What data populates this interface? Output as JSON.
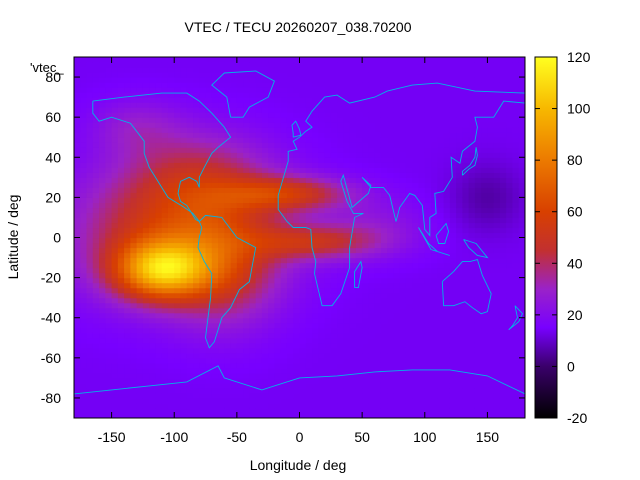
{
  "chart_data": {
    "type": "heatmap",
    "title": "VTEC / TECU 20260207_038.70200",
    "xlabel": "Longitude / deg",
    "ylabel": "Latitude / deg",
    "xlim": [
      -180,
      180
    ],
    "ylim": [
      -90,
      90
    ],
    "x_ticks": [
      -150,
      -100,
      -50,
      0,
      50,
      100,
      150
    ],
    "y_ticks": [
      -80,
      -60,
      -40,
      -20,
      0,
      20,
      40,
      60,
      80
    ],
    "colorbar": {
      "range": [
        -20,
        120
      ],
      "ticks": [
        -20,
        0,
        20,
        40,
        60,
        80,
        100,
        120
      ],
      "stops": [
        {
          "v": -20,
          "color": "#000000"
        },
        {
          "v": 0,
          "color": "#3a006a"
        },
        {
          "v": 15,
          "color": "#7800ff"
        },
        {
          "v": 30,
          "color": "#9a22c8"
        },
        {
          "v": 45,
          "color": "#c23030"
        },
        {
          "v": 60,
          "color": "#d84000"
        },
        {
          "v": 80,
          "color": "#ec7a00"
        },
        {
          "v": 100,
          "color": "#f7b800"
        },
        {
          "v": 120,
          "color": "#ffff20"
        }
      ]
    },
    "legend_entry": "'vtec_",
    "background_tec": 14,
    "features": [
      {
        "name": "equatorial-anomaly-core",
        "lon": -110,
        "lat": -16,
        "sigma_lon": 26,
        "sigma_lat": 10,
        "amp": 70
      },
      {
        "name": "pacific-band",
        "lon": -100,
        "lat": 2,
        "sigma_lon": 55,
        "sigma_lat": 22,
        "amp": 38
      },
      {
        "name": "south-america-band",
        "lon": -60,
        "lat": -15,
        "sigma_lon": 30,
        "sigma_lat": 20,
        "amp": 25
      },
      {
        "name": "north-america-band",
        "lon": -80,
        "lat": 30,
        "sigma_lon": 40,
        "sigma_lat": 16,
        "amp": 22
      },
      {
        "name": "atlantic-north-crest",
        "lon": -10,
        "lat": 22,
        "sigma_lon": 35,
        "sigma_lat": 6,
        "amp": 35
      },
      {
        "name": "atlantic-south-crest",
        "lon": 10,
        "lat": -2,
        "sigma_lon": 35,
        "sigma_lat": 6,
        "amp": 30
      },
      {
        "name": "indian-ocean-tail",
        "lon": 60,
        "lat": 5,
        "sigma_lon": 30,
        "sigma_lat": 10,
        "amp": 10
      },
      {
        "name": "north-pacific-arc",
        "lon": -130,
        "lat": 55,
        "sigma_lon": 25,
        "sigma_lat": 10,
        "amp": 12
      },
      {
        "name": "asian-depletion",
        "lon": 150,
        "lat": 20,
        "sigma_lon": 20,
        "sigma_lat": 12,
        "amp": -8
      }
    ],
    "coastlines": [
      {
        "name": "north-america",
        "points": [
          [
            -165,
            68
          ],
          [
            -140,
            70
          ],
          [
            -110,
            72
          ],
          [
            -90,
            72
          ],
          [
            -80,
            68
          ],
          [
            -70,
            62
          ],
          [
            -60,
            55
          ],
          [
            -55,
            50
          ],
          [
            -65,
            45
          ],
          [
            -70,
            42
          ],
          [
            -76,
            35
          ],
          [
            -80,
            30
          ],
          [
            -80,
            25
          ],
          [
            -82,
            28
          ],
          [
            -88,
            30
          ],
          [
            -95,
            28
          ],
          [
            -97,
            22
          ],
          [
            -95,
            18
          ],
          [
            -90,
            16
          ],
          [
            -86,
            12
          ],
          [
            -83,
            9
          ],
          [
            -80,
            8
          ],
          [
            -85,
            12
          ],
          [
            -92,
            15
          ],
          [
            -105,
            20
          ],
          [
            -110,
            25
          ],
          [
            -115,
            30
          ],
          [
            -120,
            35
          ],
          [
            -124,
            42
          ],
          [
            -124,
            48
          ],
          [
            -135,
            57
          ],
          [
            -150,
            60
          ],
          [
            -160,
            58
          ],
          [
            -165,
            62
          ],
          [
            -165,
            68
          ]
        ]
      },
      {
        "name": "south-america",
        "points": [
          [
            -80,
            8
          ],
          [
            -75,
            11
          ],
          [
            -62,
            10
          ],
          [
            -50,
            0
          ],
          [
            -35,
            -5
          ],
          [
            -38,
            -15
          ],
          [
            -40,
            -22
          ],
          [
            -48,
            -26
          ],
          [
            -55,
            -35
          ],
          [
            -62,
            -40
          ],
          [
            -65,
            -46
          ],
          [
            -68,
            -52
          ],
          [
            -72,
            -55
          ],
          [
            -75,
            -50
          ],
          [
            -73,
            -40
          ],
          [
            -71,
            -30
          ],
          [
            -70,
            -18
          ],
          [
            -76,
            -12
          ],
          [
            -81,
            -5
          ],
          [
            -80,
            0
          ],
          [
            -78,
            5
          ],
          [
            -80,
            8
          ]
        ]
      },
      {
        "name": "greenland",
        "points": [
          [
            -55,
            60
          ],
          [
            -45,
            60
          ],
          [
            -40,
            65
          ],
          [
            -25,
            70
          ],
          [
            -20,
            78
          ],
          [
            -35,
            83
          ],
          [
            -60,
            82
          ],
          [
            -70,
            76
          ],
          [
            -58,
            70
          ],
          [
            -55,
            60
          ]
        ]
      },
      {
        "name": "eurasia-africa",
        "points": [
          [
            -10,
            36
          ],
          [
            -17,
            21
          ],
          [
            -17,
            14
          ],
          [
            -10,
            8
          ],
          [
            -5,
            5
          ],
          [
            5,
            5
          ],
          [
            9,
            4
          ],
          [
            10,
            -5
          ],
          [
            13,
            -12
          ],
          [
            12,
            -18
          ],
          [
            18,
            -34
          ],
          [
            26,
            -34
          ],
          [
            33,
            -28
          ],
          [
            40,
            -15
          ],
          [
            40,
            -5
          ],
          [
            44,
            10
          ],
          [
            51,
            12
          ],
          [
            43,
            12
          ],
          [
            38,
            18
          ],
          [
            33,
            28
          ],
          [
            35,
            31
          ],
          [
            42,
            15
          ],
          [
            55,
            22
          ],
          [
            57,
            26
          ],
          [
            50,
            30
          ],
          [
            57,
            25
          ],
          [
            62,
            25
          ],
          [
            67,
            25
          ],
          [
            72,
            21
          ],
          [
            77,
            8
          ],
          [
            80,
            15
          ],
          [
            88,
            22
          ],
          [
            92,
            21
          ],
          [
            98,
            16
          ],
          [
            100,
            4
          ],
          [
            104,
            1
          ],
          [
            104,
            10
          ],
          [
            109,
            12
          ],
          [
            108,
            22
          ],
          [
            115,
            23
          ],
          [
            122,
            30
          ],
          [
            121,
            40
          ],
          [
            128,
            37
          ],
          [
            130,
            43
          ],
          [
            140,
            48
          ],
          [
            142,
            55
          ],
          [
            140,
            60
          ],
          [
            155,
            60
          ],
          [
            163,
            68
          ],
          [
            180,
            67
          ],
          [
            180,
            72
          ],
          [
            140,
            73
          ],
          [
            110,
            77
          ],
          [
            90,
            76
          ],
          [
            70,
            73
          ],
          [
            60,
            70
          ],
          [
            40,
            67
          ],
          [
            30,
            71
          ],
          [
            20,
            70
          ],
          [
            10,
            63
          ],
          [
            5,
            58
          ],
          [
            10,
            55
          ],
          [
            5,
            53
          ],
          [
            0,
            50
          ],
          [
            -5,
            48
          ],
          [
            -2,
            44
          ],
          [
            -9,
            43
          ],
          [
            -9,
            38
          ],
          [
            -10,
            36
          ]
        ]
      },
      {
        "name": "australia",
        "points": [
          [
            114,
            -22
          ],
          [
            115,
            -34
          ],
          [
            123,
            -34
          ],
          [
            132,
            -32
          ],
          [
            138,
            -35
          ],
          [
            145,
            -38
          ],
          [
            150,
            -37
          ],
          [
            153,
            -28
          ],
          [
            146,
            -19
          ],
          [
            142,
            -11
          ],
          [
            136,
            -12
          ],
          [
            130,
            -12
          ],
          [
            123,
            -17
          ],
          [
            114,
            -22
          ]
        ]
      },
      {
        "name": "antarctica",
        "points": [
          [
            -180,
            -78
          ],
          [
            -150,
            -76
          ],
          [
            -120,
            -74
          ],
          [
            -90,
            -72
          ],
          [
            -65,
            -64
          ],
          [
            -60,
            -70
          ],
          [
            -30,
            -76
          ],
          [
            0,
            -70
          ],
          [
            30,
            -69
          ],
          [
            60,
            -67
          ],
          [
            90,
            -66
          ],
          [
            120,
            -66
          ],
          [
            150,
            -69
          ],
          [
            180,
            -78
          ]
        ]
      },
      {
        "name": "madagascar",
        "points": [
          [
            44,
            -25
          ],
          [
            47,
            -25
          ],
          [
            50,
            -15
          ],
          [
            49,
            -12
          ],
          [
            44,
            -17
          ],
          [
            44,
            -25
          ]
        ]
      },
      {
        "name": "uk",
        "points": [
          [
            -5,
            50
          ],
          [
            1,
            51
          ],
          [
            0,
            54
          ],
          [
            -3,
            58
          ],
          [
            -6,
            56
          ],
          [
            -5,
            52
          ],
          [
            -5,
            50
          ]
        ]
      },
      {
        "name": "japan",
        "points": [
          [
            130,
            31
          ],
          [
            135,
            34
          ],
          [
            140,
            36
          ],
          [
            142,
            41
          ],
          [
            141,
            45
          ],
          [
            140,
            40
          ],
          [
            136,
            36
          ],
          [
            130,
            33
          ],
          [
            130,
            31
          ]
        ]
      },
      {
        "name": "new-zealand",
        "points": [
          [
            172,
            -34
          ],
          [
            178,
            -38
          ],
          [
            175,
            -42
          ],
          [
            167,
            -46
          ],
          [
            170,
            -44
          ],
          [
            174,
            -40
          ],
          [
            172,
            -34
          ]
        ]
      },
      {
        "name": "indonesia",
        "points": [
          [
            95,
            5
          ],
          [
            105,
            -6
          ],
          [
            115,
            -8
          ],
          [
            120,
            -9
          ],
          [
            110,
            -7
          ],
          [
            103,
            -3
          ],
          [
            98,
            2
          ],
          [
            95,
            5
          ]
        ]
      },
      {
        "name": "borneo",
        "points": [
          [
            109,
            1
          ],
          [
            113,
            4
          ],
          [
            117,
            7
          ],
          [
            119,
            3
          ],
          [
            116,
            -3
          ],
          [
            111,
            -3
          ],
          [
            109,
            1
          ]
        ]
      },
      {
        "name": "new-guinea",
        "points": [
          [
            131,
            -1
          ],
          [
            141,
            -3
          ],
          [
            150,
            -10
          ],
          [
            142,
            -9
          ],
          [
            135,
            -5
          ],
          [
            131,
            -1
          ]
        ]
      }
    ]
  }
}
